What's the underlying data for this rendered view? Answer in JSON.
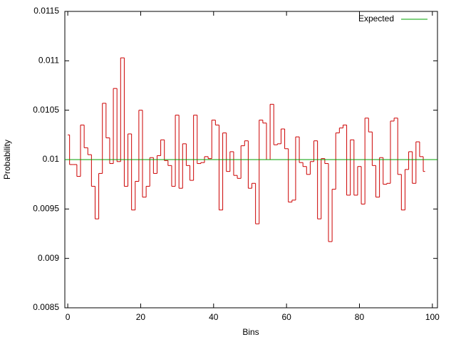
{
  "chart_data": {
    "type": "histeps",
    "xlabel": "Bins",
    "ylabel": "Probability",
    "x": [
      0,
      1,
      2,
      3,
      4,
      5,
      6,
      7,
      8,
      9,
      10,
      11,
      12,
      13,
      14,
      15,
      16,
      17,
      18,
      19,
      20,
      21,
      22,
      23,
      24,
      25,
      26,
      27,
      28,
      29,
      30,
      31,
      32,
      33,
      34,
      35,
      36,
      37,
      38,
      39,
      40,
      41,
      42,
      43,
      44,
      45,
      46,
      47,
      48,
      49,
      50,
      51,
      52,
      53,
      54,
      55,
      56,
      57,
      58,
      59,
      60,
      61,
      62,
      63,
      64,
      65,
      66,
      67,
      68,
      69,
      70,
      71,
      72,
      73,
      74,
      75,
      76,
      77,
      78,
      79,
      80,
      81,
      82,
      83,
      84,
      85,
      86,
      87,
      88,
      89,
      90,
      91,
      92,
      93,
      94,
      95,
      96,
      97,
      98
    ],
    "series": [
      {
        "color": "#cc0000",
        "values": [
          0.01025,
          0.00995,
          0.00995,
          0.00983,
          0.01035,
          0.01012,
          0.01005,
          0.00973,
          0.0094,
          0.00986,
          0.01057,
          0.01022,
          0.00996,
          0.01072,
          0.00998,
          0.01103,
          0.00973,
          0.01026,
          0.00949,
          0.00978,
          0.0105,
          0.00962,
          0.00973,
          0.01002,
          0.00986,
          0.01004,
          0.0102,
          0.00999,
          0.00994,
          0.00973,
          0.01045,
          0.00971,
          0.01016,
          0.00994,
          0.00979,
          0.01045,
          0.00996,
          0.00997,
          0.01003,
          0.01001,
          0.0104,
          0.01035,
          0.00949,
          0.01027,
          0.00988,
          0.01008,
          0.00984,
          0.00981,
          0.01014,
          0.01019,
          0.00971,
          0.00976,
          0.00935,
          0.0104,
          0.01037,
          0.01,
          0.01056,
          0.01015,
          0.01016,
          0.01031,
          0.01011,
          0.00957,
          0.00959,
          0.01023,
          0.00997,
          0.00993,
          0.00985,
          0.00998,
          0.01019,
          0.0094,
          0.01001,
          0.00996,
          0.00917,
          0.0097,
          0.01027,
          0.01032,
          0.01035,
          0.00964,
          0.0102,
          0.00964,
          0.00993,
          0.00955,
          0.01042,
          0.01028,
          0.00994,
          0.00962,
          0.01002,
          0.00975,
          0.00976,
          0.01039,
          0.01042,
          0.00985,
          0.00949,
          0.0099,
          0.01008,
          0.00976,
          0.01018,
          0.01003,
          0.00988
        ]
      }
    ],
    "reference_line": {
      "name": "Expected",
      "value": 0.01,
      "color": "#00a000"
    },
    "legend": "upper right",
    "xlim": [
      -0.8,
      101.4
    ],
    "xticks": [
      0,
      20,
      40,
      60,
      80,
      100
    ],
    "ylim": [
      0.0085,
      0.0115
    ],
    "yticks": [
      0.0085,
      0.009,
      0.0095,
      0.01,
      0.0105,
      0.011,
      0.0115
    ]
  }
}
